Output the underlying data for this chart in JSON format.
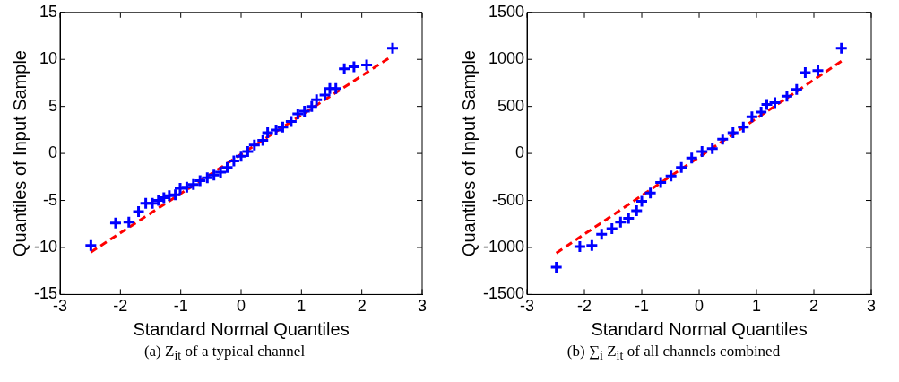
{
  "chart_data": [
    {
      "type": "scatter",
      "xlabel": "Standard Normal Quantiles",
      "ylabel": "Quantiles of Input Sample",
      "annotations": [
        "(a) Z$_{it}$ of a typical channel"
      ],
      "xlim": [
        -3,
        3
      ],
      "xticks": [
        -3,
        -2,
        -1,
        0,
        1,
        2,
        3
      ],
      "ylim": [
        -15,
        15
      ],
      "yticks": [
        -15,
        -10,
        -5,
        0,
        5,
        10,
        15
      ],
      "grid": false,
      "legend": false,
      "series": [
        {
          "type": "scatter",
          "color": "#0000ff",
          "marker": "cross",
          "x": [
            -2.49,
            -2.08,
            -1.86,
            -1.7,
            -1.58,
            -1.47,
            -1.37,
            -1.28,
            -1.19,
            -1.09,
            -1.01,
            -0.9,
            -0.79,
            -0.68,
            -0.56,
            -0.45,
            -0.34,
            -0.23,
            -0.12,
            0,
            0.11,
            0.22,
            0.36,
            0.44,
            0.58,
            0.69,
            0.83,
            0.94,
            1.05,
            1.17,
            1.25,
            1.39,
            1.47,
            1.57,
            1.71,
            1.87,
            2.08,
            2.51
          ],
          "values": [
            -9.8,
            -7.4,
            -7.3,
            -6.2,
            -5.3,
            -5.3,
            -5,
            -4.7,
            -4.5,
            -4.4,
            -3.7,
            -3.6,
            -3.3,
            -2.9,
            -2.6,
            -2.3,
            -2,
            -1.5,
            -0.8,
            -0.3,
            0.2,
            0.9,
            1.4,
            2.2,
            2.5,
            2.8,
            3.4,
            4.2,
            4.5,
            5,
            5.7,
            6.2,
            6.9,
            6.9,
            9,
            9.2,
            9.4,
            11.2
          ]
        },
        {
          "type": "line",
          "color": "#ff0000",
          "marker": "none",
          "line_style": "dashed",
          "x": [
            -2.49,
            2.44
          ],
          "values": [
            -10.5,
            10.1
          ]
        }
      ]
    },
    {
      "type": "scatter",
      "xlabel": "Standard Normal Quantiles",
      "ylabel": "Quantiles of Input Sample",
      "annotations": [
        "(b) ∑$_{i}$ Z$_{it}$ of all channels combined"
      ],
      "xlim": [
        -3,
        3
      ],
      "xticks": [
        -3,
        -2,
        -1,
        0,
        1,
        2,
        3
      ],
      "ylim": [
        -1500,
        1500
      ],
      "yticks": [
        -1500,
        -1000,
        -500,
        0,
        500,
        1000,
        1500
      ],
      "grid": false,
      "legend": false,
      "series": [
        {
          "type": "scatter",
          "color": "#0000ff",
          "marker": "cross",
          "x": [
            -2.49,
            -2.08,
            -1.87,
            -1.7,
            -1.52,
            -1.37,
            -1.23,
            -1.09,
            -1,
            -0.85,
            -0.67,
            -0.49,
            -0.31,
            -0.13,
            0.05,
            0.23,
            0.41,
            0.59,
            0.77,
            0.92,
            1.08,
            1.18,
            1.32,
            1.53,
            1.7,
            1.85,
            2.07,
            2.48
          ],
          "values": [
            -1210,
            -990,
            -980,
            -860,
            -800,
            -730,
            -690,
            -610,
            -510,
            -420,
            -310,
            -240,
            -150,
            -50,
            20,
            50,
            150,
            220,
            280,
            390,
            440,
            520,
            540,
            610,
            680,
            860,
            880,
            1120
          ]
        },
        {
          "type": "line",
          "color": "#ff0000",
          "marker": "none",
          "line_style": "dashed",
          "x": [
            -2.49,
            2.48
          ],
          "values": [
            -1060,
            980
          ]
        }
      ]
    }
  ]
}
